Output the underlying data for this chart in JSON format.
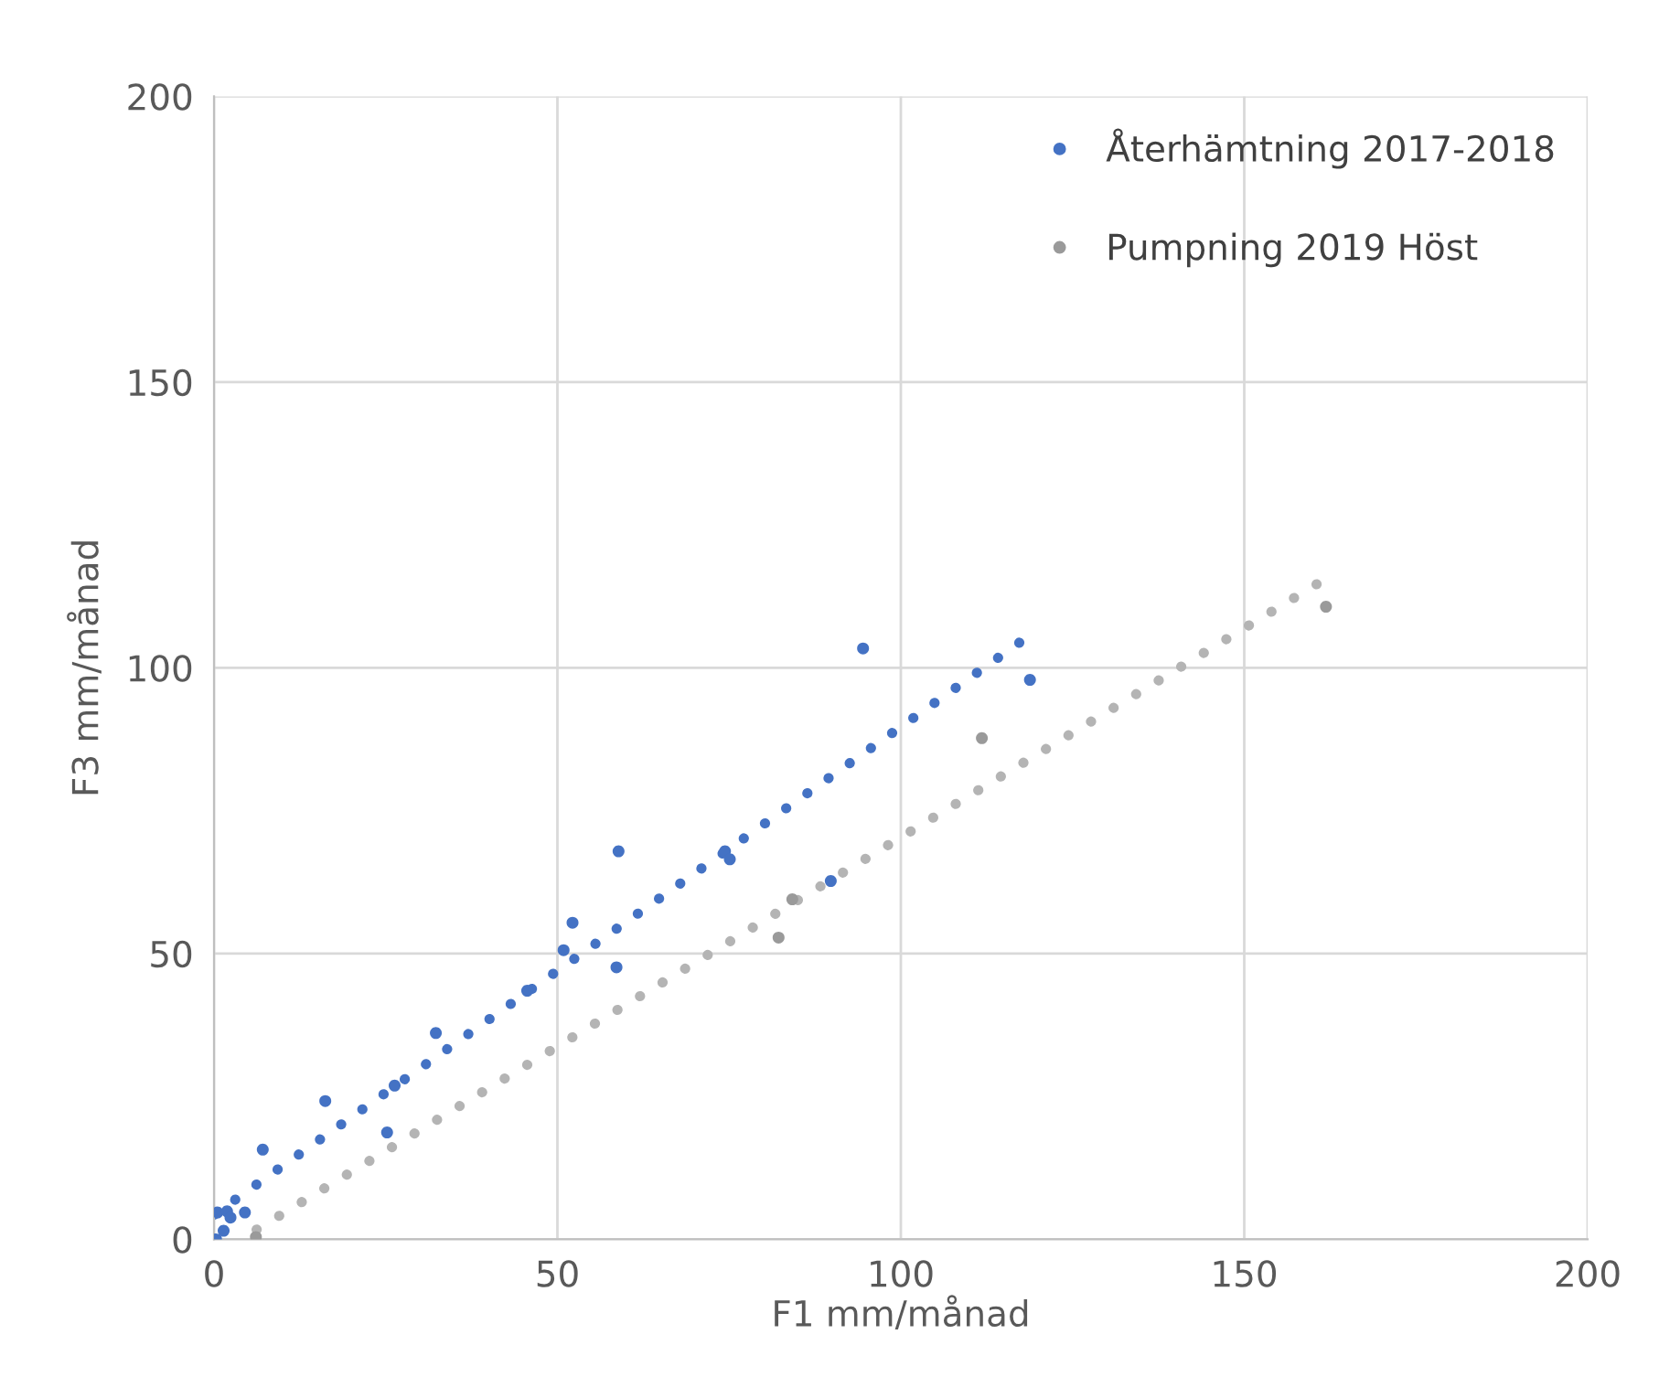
{
  "chart_data": {
    "type": "scatter",
    "xlabel": "F1 mm/månad",
    "ylabel": "F3 mm/månad",
    "xlim": [
      0,
      200
    ],
    "ylim": [
      0,
      200
    ],
    "xticks": [
      0,
      50,
      100,
      150,
      200
    ],
    "yticks": [
      0,
      50,
      100,
      150,
      200
    ],
    "grid": true,
    "legend": "top right",
    "marker": "circle",
    "series": [
      {
        "name": "Återhämtning 2017-2018",
        "color": "#4472c4",
        "x": [
          0.3,
          1.4,
          0.5,
          1.9,
          2.4,
          4.5,
          7.1,
          16.2,
          25.2,
          26.3,
          32.3,
          45.6,
          50.9,
          52.2,
          58.9,
          58.6,
          74.4,
          75.1,
          89.8,
          94.5,
          118.8
        ],
        "values": [
          0,
          1.5,
          4.7,
          4.9,
          3.8,
          4.7,
          15.7,
          24.2,
          18.7,
          26.9,
          36.1,
          43.5,
          50.6,
          55.4,
          67.9,
          47.6,
          67.9,
          66.5,
          62.7,
          103.4,
          97.9
        ]
      },
      {
        "name": "Pumpning 2019 Höst",
        "color": "#9a9a9a",
        "x": [
          6.1,
          82.2,
          84.2,
          111.8,
          161.9
        ],
        "values": [
          0.4,
          52.8,
          59.5,
          87.7,
          110.7
        ]
      },
      {
        "type": "line",
        "line_style": "dotted",
        "marker": "none",
        "color": "#4472c4",
        "x": [
          0,
          117.6
        ],
        "values": [
          4.3,
          104.7
        ]
      },
      {
        "type": "line",
        "line_style": "dotted",
        "marker": "none",
        "color": "#b4b4b4",
        "x": [
          6.2,
          160.9
        ],
        "values": [
          1.7,
          114.9
        ]
      }
    ]
  }
}
